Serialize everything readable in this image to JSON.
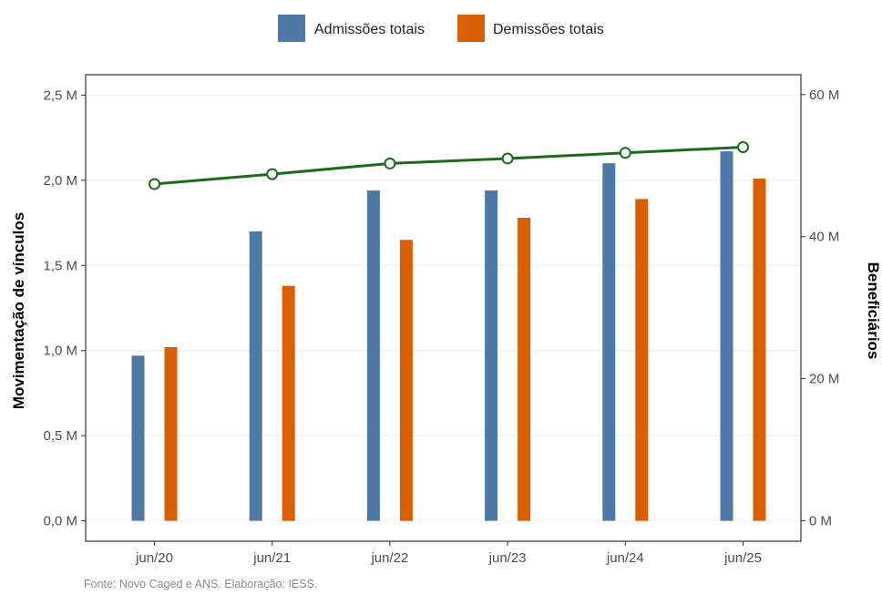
{
  "chart_data": {
    "type": "bar",
    "categories": [
      "jun/20",
      "jun/21",
      "jun/22",
      "jun/23",
      "jun/24",
      "jun/25"
    ],
    "series": [
      {
        "name": "Admissões totais",
        "values": [
          0.97,
          1.7,
          1.94,
          1.94,
          2.1,
          2.17
        ],
        "color": "#4e79a7",
        "axis": "left"
      },
      {
        "name": "Demissões totais",
        "values": [
          1.02,
          1.38,
          1.65,
          1.78,
          1.89,
          2.01
        ],
        "color": "#d95f02",
        "axis": "left"
      }
    ],
    "line_series": {
      "values": [
        47.4,
        48.8,
        50.3,
        51.0,
        51.8,
        52.6
      ],
      "color": "#1b6b1b",
      "axis": "right"
    },
    "ylabel": "Movimentação de vínculos",
    "ylabel_right": "Beneficiários",
    "ylim": [
      -0.12,
      2.62
    ],
    "ylim_right": [
      -2.9,
      62.8
    ],
    "yticks": [
      0,
      0.5,
      1.0,
      1.5,
      2.0,
      2.5
    ],
    "ytick_labels": [
      "0,0 M",
      "0,5 M",
      "1,0 M",
      "1,5 M",
      "2,0 M",
      "2,5 M"
    ],
    "yticks_right": [
      0,
      20,
      40,
      60
    ],
    "ytick_labels_right": [
      "0 M",
      "20 M",
      "40 M",
      "60 M"
    ],
    "grid": true,
    "legend_position": "top"
  },
  "source_note": "Fonte: Novo Caged e ANS. Elaboração: IESS."
}
